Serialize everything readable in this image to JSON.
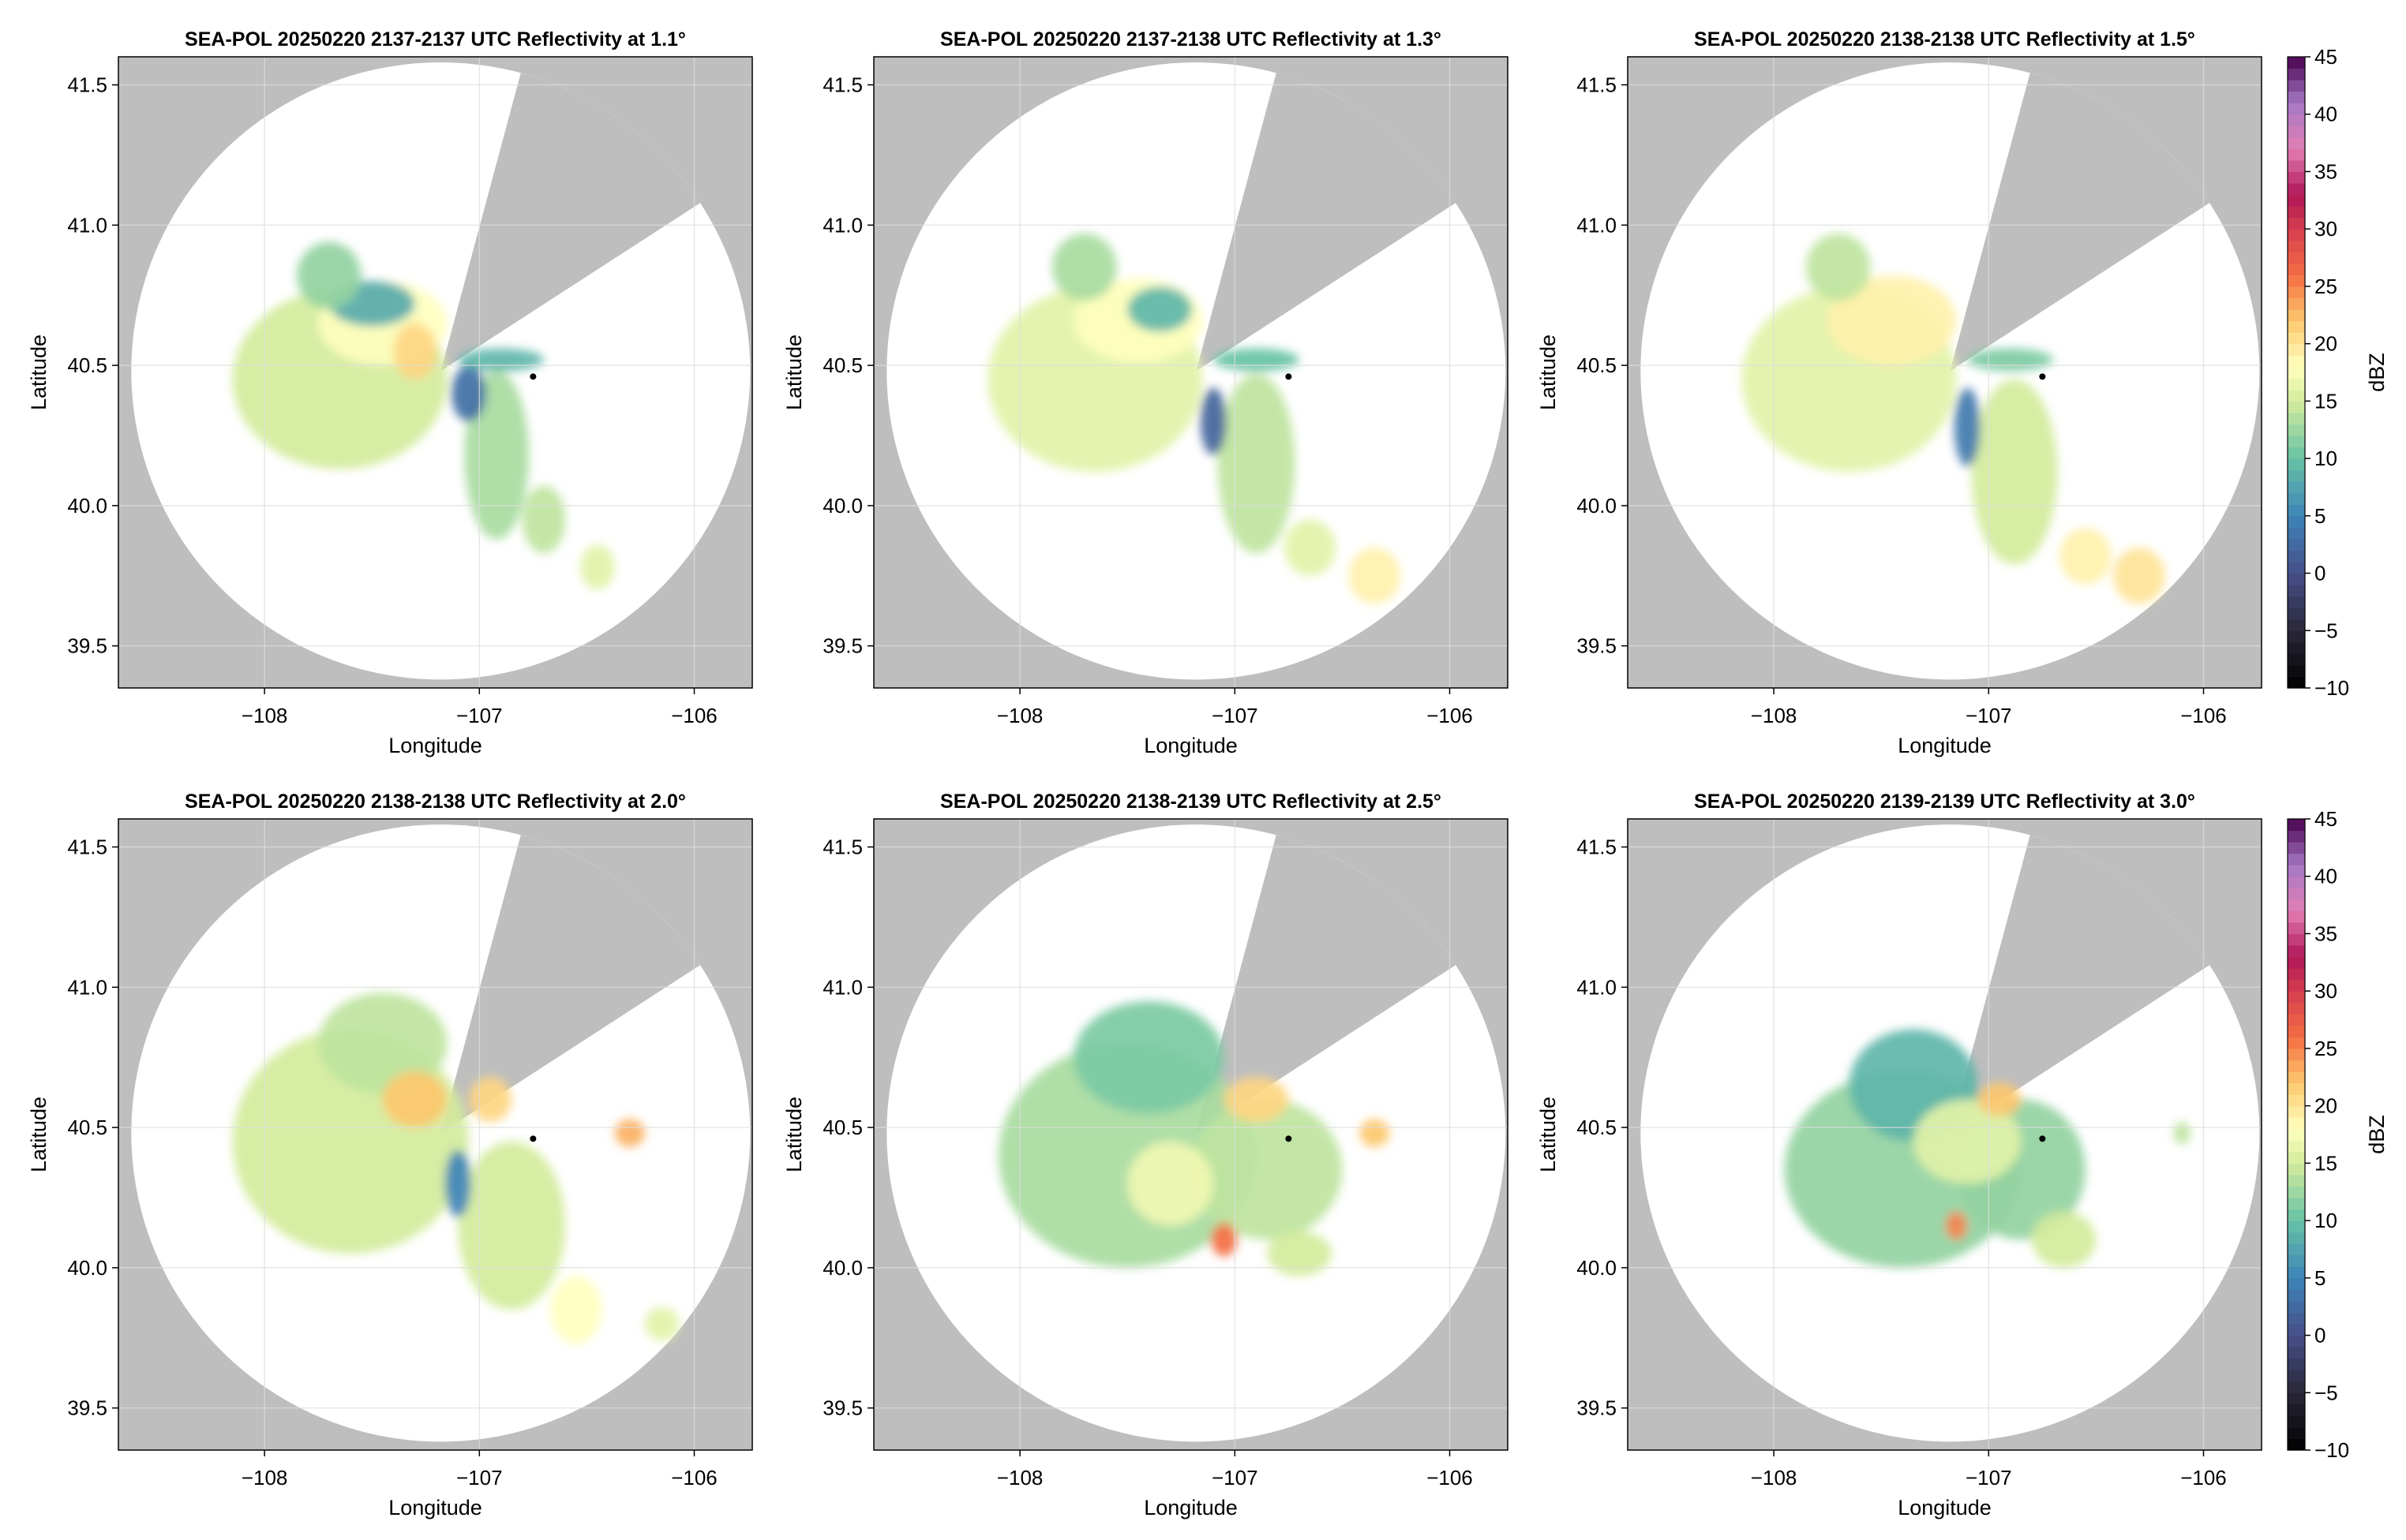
{
  "figure": {
    "colors": {
      "background": "#ffffff",
      "outside_range": "#bebebe",
      "blocked_sector": "#bebebe",
      "scanned_area": "#ffffff",
      "gridline": "#dddddd",
      "radar_site_marker": "#000000"
    }
  },
  "chart_data": [
    {
      "type": "heatmap",
      "title": "SEA-POL 20250220 2137-2137 UTC Reflectivity at 1.1°",
      "xlabel": "Longitude",
      "ylabel": "Latitude",
      "xlim": [
        -108.68,
        -105.73
      ],
      "ylim": [
        39.35,
        41.6
      ],
      "xticks": [
        -108,
        -107,
        -106
      ],
      "xtick_labels": [
        "−108",
        "−107",
        "−106"
      ],
      "yticks": [
        39.5,
        40.0,
        40.5,
        41.0,
        41.5
      ],
      "ytick_labels": [
        "39.5",
        "40.0",
        "40.5",
        "41.0",
        "41.5"
      ],
      "grid": true,
      "radar": {
        "lon": -107.18,
        "lat": 40.48,
        "range_lon": 1.44,
        "range_lat": 1.1,
        "blocked_sector_deg": [
          15,
          57
        ]
      },
      "marker": {
        "lon": -106.75,
        "lat": 40.46
      },
      "echoes": [
        {
          "lon": -107.65,
          "lat": 40.45,
          "rlon": 0.5,
          "rlat": 0.32,
          "dbz": 15
        },
        {
          "lon": -107.45,
          "lat": 40.65,
          "rlon": 0.3,
          "rlat": 0.15,
          "dbz": 18
        },
        {
          "lon": -107.5,
          "lat": 40.72,
          "rlon": 0.2,
          "rlat": 0.08,
          "dbz": 8
        },
        {
          "lon": -107.7,
          "lat": 40.82,
          "rlon": 0.15,
          "rlat": 0.12,
          "dbz": 12
        },
        {
          "lon": -107.3,
          "lat": 40.55,
          "rlon": 0.1,
          "rlat": 0.1,
          "dbz": 21
        },
        {
          "lon": -106.92,
          "lat": 40.18,
          "rlon": 0.15,
          "rlat": 0.3,
          "dbz": 13
        },
        {
          "lon": -106.7,
          "lat": 39.95,
          "rlon": 0.1,
          "rlat": 0.12,
          "dbz": 14
        },
        {
          "lon": -106.45,
          "lat": 39.78,
          "rlon": 0.08,
          "rlat": 0.08,
          "dbz": 16
        },
        {
          "lon": -107.05,
          "lat": 40.4,
          "rlon": 0.08,
          "rlat": 0.1,
          "dbz": 3
        },
        {
          "lon": -106.9,
          "lat": 40.52,
          "rlon": 0.2,
          "rlat": 0.04,
          "dbz": 9
        }
      ]
    },
    {
      "type": "heatmap",
      "title": "SEA-POL 20250220 2137-2138 UTC Reflectivity at 1.3°",
      "xlabel": "Longitude",
      "ylabel": "Latitude",
      "xlim": [
        -108.68,
        -105.73
      ],
      "ylim": [
        39.35,
        41.6
      ],
      "xticks": [
        -108,
        -107,
        -106
      ],
      "xtick_labels": [
        "−108",
        "−107",
        "−106"
      ],
      "yticks": [
        39.5,
        40.0,
        40.5,
        41.0,
        41.5
      ],
      "ytick_labels": [
        "39.5",
        "40.0",
        "40.5",
        "41.0",
        "41.5"
      ],
      "grid": true,
      "radar": {
        "lon": -107.18,
        "lat": 40.48,
        "range_lon": 1.44,
        "range_lat": 1.1,
        "blocked_sector_deg": [
          15,
          57
        ]
      },
      "marker": {
        "lon": -106.75,
        "lat": 40.46
      },
      "echoes": [
        {
          "lon": -107.65,
          "lat": 40.45,
          "rlon": 0.5,
          "rlat": 0.33,
          "dbz": 16
        },
        {
          "lon": -107.45,
          "lat": 40.66,
          "rlon": 0.3,
          "rlat": 0.15,
          "dbz": 18
        },
        {
          "lon": -107.35,
          "lat": 40.7,
          "rlon": 0.15,
          "rlat": 0.08,
          "dbz": 9
        },
        {
          "lon": -107.7,
          "lat": 40.85,
          "rlon": 0.15,
          "rlat": 0.12,
          "dbz": 13
        },
        {
          "lon": -106.9,
          "lat": 40.15,
          "rlon": 0.18,
          "rlat": 0.32,
          "dbz": 14
        },
        {
          "lon": -106.65,
          "lat": 39.85,
          "rlon": 0.12,
          "rlat": 0.1,
          "dbz": 16
        },
        {
          "lon": -106.35,
          "lat": 39.75,
          "rlon": 0.12,
          "rlat": 0.1,
          "dbz": 19
        },
        {
          "lon": -107.1,
          "lat": 40.3,
          "rlon": 0.06,
          "rlat": 0.12,
          "dbz": 2
        },
        {
          "lon": -106.9,
          "lat": 40.52,
          "rlon": 0.2,
          "rlat": 0.04,
          "dbz": 10
        }
      ]
    },
    {
      "type": "heatmap",
      "title": "SEA-POL 20250220 2138-2138 UTC Reflectivity at 1.5°",
      "xlabel": "Longitude",
      "ylabel": "Latitude",
      "xlim": [
        -108.68,
        -105.73
      ],
      "ylim": [
        39.35,
        41.6
      ],
      "xticks": [
        -108,
        -107,
        -106
      ],
      "xtick_labels": [
        "−108",
        "−107",
        "−106"
      ],
      "yticks": [
        39.5,
        40.0,
        40.5,
        41.0,
        41.5
      ],
      "ytick_labels": [
        "39.5",
        "40.0",
        "40.5",
        "41.0",
        "41.5"
      ],
      "grid": true,
      "radar": {
        "lon": -107.18,
        "lat": 40.48,
        "range_lon": 1.44,
        "range_lat": 1.1,
        "blocked_sector_deg": [
          15,
          57
        ]
      },
      "marker": {
        "lon": -106.75,
        "lat": 40.46
      },
      "echoes": [
        {
          "lon": -107.65,
          "lat": 40.45,
          "rlon": 0.5,
          "rlat": 0.33,
          "dbz": 16
        },
        {
          "lon": -107.45,
          "lat": 40.66,
          "rlon": 0.3,
          "rlat": 0.16,
          "dbz": 19
        },
        {
          "lon": -107.7,
          "lat": 40.85,
          "rlon": 0.15,
          "rlat": 0.12,
          "dbz": 14
        },
        {
          "lon": -106.88,
          "lat": 40.12,
          "rlon": 0.2,
          "rlat": 0.33,
          "dbz": 15
        },
        {
          "lon": -106.55,
          "lat": 39.82,
          "rlon": 0.12,
          "rlat": 0.1,
          "dbz": 19
        },
        {
          "lon": -106.3,
          "lat": 39.75,
          "rlon": 0.12,
          "rlat": 0.1,
          "dbz": 20
        },
        {
          "lon": -107.1,
          "lat": 40.28,
          "rlon": 0.06,
          "rlat": 0.14,
          "dbz": 4
        },
        {
          "lon": -106.9,
          "lat": 40.52,
          "rlon": 0.2,
          "rlat": 0.04,
          "dbz": 11
        }
      ]
    },
    {
      "type": "heatmap",
      "title": "SEA-POL 20250220 2138-2138 UTC Reflectivity at 2.0°",
      "xlabel": "Longitude",
      "ylabel": "Latitude",
      "xlim": [
        -108.68,
        -105.73
      ],
      "ylim": [
        39.35,
        41.6
      ],
      "xticks": [
        -108,
        -107,
        -106
      ],
      "xtick_labels": [
        "−108",
        "−107",
        "−106"
      ],
      "yticks": [
        39.5,
        40.0,
        40.5,
        41.0,
        41.5
      ],
      "ytick_labels": [
        "39.5",
        "40.0",
        "40.5",
        "41.0",
        "41.5"
      ],
      "grid": true,
      "radar": {
        "lon": -107.18,
        "lat": 40.48,
        "range_lon": 1.44,
        "range_lat": 1.1,
        "blocked_sector_deg": [
          15,
          57
        ]
      },
      "marker": {
        "lon": -106.75,
        "lat": 40.46
      },
      "echoes": [
        {
          "lon": -107.6,
          "lat": 40.45,
          "rlon": 0.55,
          "rlat": 0.4,
          "dbz": 15
        },
        {
          "lon": -107.45,
          "lat": 40.8,
          "rlon": 0.3,
          "rlat": 0.18,
          "dbz": 14
        },
        {
          "lon": -107.3,
          "lat": 40.6,
          "rlon": 0.15,
          "rlat": 0.1,
          "dbz": 22
        },
        {
          "lon": -106.95,
          "lat": 40.6,
          "rlon": 0.1,
          "rlat": 0.08,
          "dbz": 21
        },
        {
          "lon": -106.85,
          "lat": 40.15,
          "rlon": 0.25,
          "rlat": 0.3,
          "dbz": 15
        },
        {
          "lon": -106.55,
          "lat": 39.85,
          "rlon": 0.12,
          "rlat": 0.12,
          "dbz": 18
        },
        {
          "lon": -106.15,
          "lat": 39.8,
          "rlon": 0.08,
          "rlat": 0.06,
          "dbz": 16
        },
        {
          "lon": -106.3,
          "lat": 40.48,
          "rlon": 0.07,
          "rlat": 0.05,
          "dbz": 23
        },
        {
          "lon": -107.1,
          "lat": 40.3,
          "rlon": 0.06,
          "rlat": 0.12,
          "dbz": 5
        }
      ]
    },
    {
      "type": "heatmap",
      "title": "SEA-POL 20250220 2138-2139 UTC Reflectivity at 2.5°",
      "xlabel": "Longitude",
      "ylabel": "Latitude",
      "xlim": [
        -108.68,
        -105.73
      ],
      "ylim": [
        39.35,
        41.6
      ],
      "xticks": [
        -108,
        -107,
        -106
      ],
      "xtick_labels": [
        "−108",
        "−107",
        "−106"
      ],
      "yticks": [
        39.5,
        40.0,
        40.5,
        41.0,
        41.5
      ],
      "ytick_labels": [
        "39.5",
        "40.0",
        "40.5",
        "41.0",
        "41.5"
      ],
      "grid": true,
      "radar": {
        "lon": -107.18,
        "lat": 40.48,
        "range_lon": 1.44,
        "range_lat": 1.1,
        "blocked_sector_deg": [
          15,
          57
        ]
      },
      "marker": {
        "lon": -106.75,
        "lat": 40.46
      },
      "echoes": [
        {
          "lon": -107.5,
          "lat": 40.4,
          "rlon": 0.6,
          "rlat": 0.4,
          "dbz": 13
        },
        {
          "lon": -107.4,
          "lat": 40.75,
          "rlon": 0.35,
          "rlat": 0.2,
          "dbz": 11
        },
        {
          "lon": -106.85,
          "lat": 40.35,
          "rlon": 0.35,
          "rlat": 0.25,
          "dbz": 14
        },
        {
          "lon": -106.9,
          "lat": 40.6,
          "rlon": 0.15,
          "rlat": 0.08,
          "dbz": 21
        },
        {
          "lon": -106.35,
          "lat": 40.48,
          "rlon": 0.07,
          "rlat": 0.05,
          "dbz": 22
        },
        {
          "lon": -107.3,
          "lat": 40.3,
          "rlon": 0.2,
          "rlat": 0.15,
          "dbz": 17
        },
        {
          "lon": -107.05,
          "lat": 40.1,
          "rlon": 0.06,
          "rlat": 0.06,
          "dbz": 26
        },
        {
          "lon": -106.7,
          "lat": 40.05,
          "rlon": 0.15,
          "rlat": 0.08,
          "dbz": 15
        }
      ]
    },
    {
      "type": "heatmap",
      "title": "SEA-POL 20250220 2139-2139 UTC Reflectivity at 3.0°",
      "xlabel": "Longitude",
      "ylabel": "Latitude",
      "xlim": [
        -108.68,
        -105.73
      ],
      "ylim": [
        39.35,
        41.6
      ],
      "xticks": [
        -108,
        -107,
        -106
      ],
      "xtick_labels": [
        "−108",
        "−107",
        "−106"
      ],
      "yticks": [
        39.5,
        40.0,
        40.5,
        41.0,
        41.5
      ],
      "ytick_labels": [
        "39.5",
        "40.0",
        "40.5",
        "41.0",
        "41.5"
      ],
      "grid": true,
      "radar": {
        "lon": -107.18,
        "lat": 40.48,
        "range_lon": 1.44,
        "range_lat": 1.1,
        "blocked_sector_deg": [
          15,
          57
        ]
      },
      "marker": {
        "lon": -106.75,
        "lat": 40.46
      },
      "echoes": [
        {
          "lon": -107.4,
          "lat": 40.35,
          "rlon": 0.55,
          "rlat": 0.35,
          "dbz": 12
        },
        {
          "lon": -107.35,
          "lat": 40.65,
          "rlon": 0.3,
          "rlat": 0.2,
          "dbz": 9
        },
        {
          "lon": -106.85,
          "lat": 40.35,
          "rlon": 0.3,
          "rlat": 0.25,
          "dbz": 12
        },
        {
          "lon": -107.1,
          "lat": 40.45,
          "rlon": 0.25,
          "rlat": 0.15,
          "dbz": 16
        },
        {
          "lon": -106.95,
          "lat": 40.6,
          "rlon": 0.1,
          "rlat": 0.06,
          "dbz": 22
        },
        {
          "lon": -106.65,
          "lat": 40.1,
          "rlon": 0.15,
          "rlat": 0.1,
          "dbz": 15
        },
        {
          "lon": -106.1,
          "lat": 40.48,
          "rlon": 0.04,
          "rlat": 0.04,
          "dbz": 14
        },
        {
          "lon": -107.15,
          "lat": 40.15,
          "rlon": 0.05,
          "rlat": 0.05,
          "dbz": 25
        }
      ]
    }
  ],
  "colorbar": {
    "label": "dBZ",
    "range": [
      -10,
      45
    ],
    "ticks": [
      -10,
      -5,
      0,
      5,
      10,
      15,
      20,
      25,
      30,
      35,
      40,
      45
    ],
    "tick_labels": [
      "−10",
      "−5",
      "0",
      "5",
      "10",
      "15",
      "20",
      "25",
      "30",
      "35",
      "40",
      "45"
    ],
    "levels": 55,
    "stops": [
      {
        "value": -10,
        "color": "#000000"
      },
      {
        "value": -5,
        "color": "#2a2738"
      },
      {
        "value": 0,
        "color": "#464f88"
      },
      {
        "value": 5,
        "color": "#3d84b8"
      },
      {
        "value": 10,
        "color": "#66c2a5"
      },
      {
        "value": 15,
        "color": "#d4ec9c"
      },
      {
        "value": 18,
        "color": "#ffffbf"
      },
      {
        "value": 22,
        "color": "#fdc86e"
      },
      {
        "value": 26,
        "color": "#f46d43"
      },
      {
        "value": 30,
        "color": "#d53e4f"
      },
      {
        "value": 33,
        "color": "#b01657"
      },
      {
        "value": 37,
        "color": "#e27fb5"
      },
      {
        "value": 41,
        "color": "#a478c4"
      },
      {
        "value": 45,
        "color": "#48004e"
      }
    ]
  }
}
